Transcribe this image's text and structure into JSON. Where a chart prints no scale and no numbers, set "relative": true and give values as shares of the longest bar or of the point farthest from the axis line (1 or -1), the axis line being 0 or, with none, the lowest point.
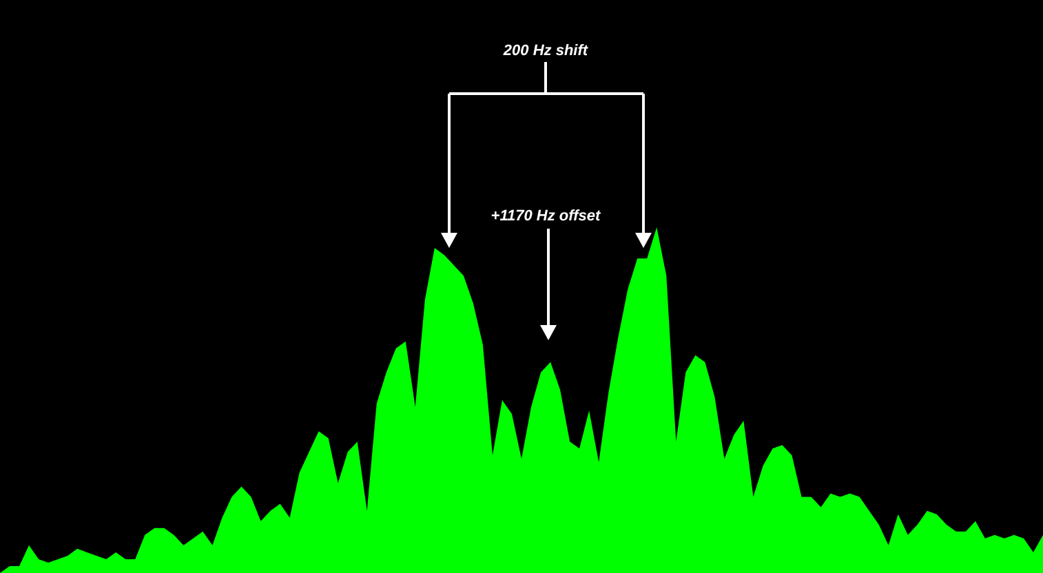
{
  "chart_data": {
    "type": "area",
    "relative": true,
    "color": "#00ff00",
    "annotations": [
      "200 Hz shift",
      "+1170 Hz offset"
    ],
    "categories": [
      null,
      null,
      null,
      null,
      null,
      null,
      null,
      null,
      null,
      null,
      null,
      null,
      null,
      null,
      null,
      null,
      null,
      null,
      null,
      null,
      null,
      null,
      null,
      null,
      null,
      null,
      null,
      null,
      null,
      null,
      null,
      null,
      null,
      null,
      null,
      null,
      null,
      null,
      null,
      null,
      null,
      null,
      null,
      null,
      null,
      null,
      null,
      null,
      null,
      null,
      null,
      null,
      null,
      null,
      null,
      null,
      null,
      null,
      null,
      null,
      null,
      null,
      null,
      null,
      null,
      null,
      null,
      null,
      null,
      null,
      null,
      null,
      null,
      null,
      null,
      null,
      null,
      null,
      null,
      null,
      null,
      null,
      null,
      null,
      null,
      null,
      null,
      null,
      null,
      null,
      null,
      null,
      null,
      null,
      null,
      null,
      null,
      null,
      null,
      null,
      null,
      null,
      null,
      null,
      null,
      null,
      null,
      null,
      null
    ],
    "values": [
      0,
      0.02,
      0.02,
      0.08,
      0.04,
      0.03,
      0.04,
      0.05,
      0.07,
      0.06,
      0.05,
      0.04,
      0.06,
      0.04,
      0.04,
      0.11,
      0.13,
      0.13,
      0.11,
      0.08,
      0.1,
      0.12,
      0.08,
      0.16,
      0.22,
      0.25,
      0.22,
      0.15,
      0.18,
      0.2,
      0.16,
      0.29,
      0.35,
      0.41,
      0.39,
      0.26,
      0.35,
      0.38,
      0.18,
      0.49,
      0.58,
      0.65,
      0.67,
      0.48,
      0.79,
      0.94,
      0.92,
      0.89,
      0.86,
      0.78,
      0.66,
      0.34,
      0.5,
      0.46,
      0.33,
      0.48,
      0.58,
      0.61,
      0.53,
      0.38,
      0.36,
      0.47,
      0.32,
      0.52,
      0.68,
      0.82,
      0.91,
      0.91,
      1,
      0.86,
      0.38,
      0.58,
      0.63,
      0.61,
      0.51,
      0.33,
      0.4,
      0.44,
      0.22,
      0.31,
      0.36,
      0.37,
      0.34,
      0.22,
      0.22,
      0.19,
      0.23,
      0.22,
      0.23,
      0.22,
      0.18,
      0.14,
      0.08,
      0.17,
      0.11,
      0.14,
      0.18,
      0.17,
      0.14,
      0.12,
      0.12,
      0.15,
      0.1,
      0.11,
      0.1,
      0.11,
      0.1,
      0.06,
      0.11
    ]
  }
}
